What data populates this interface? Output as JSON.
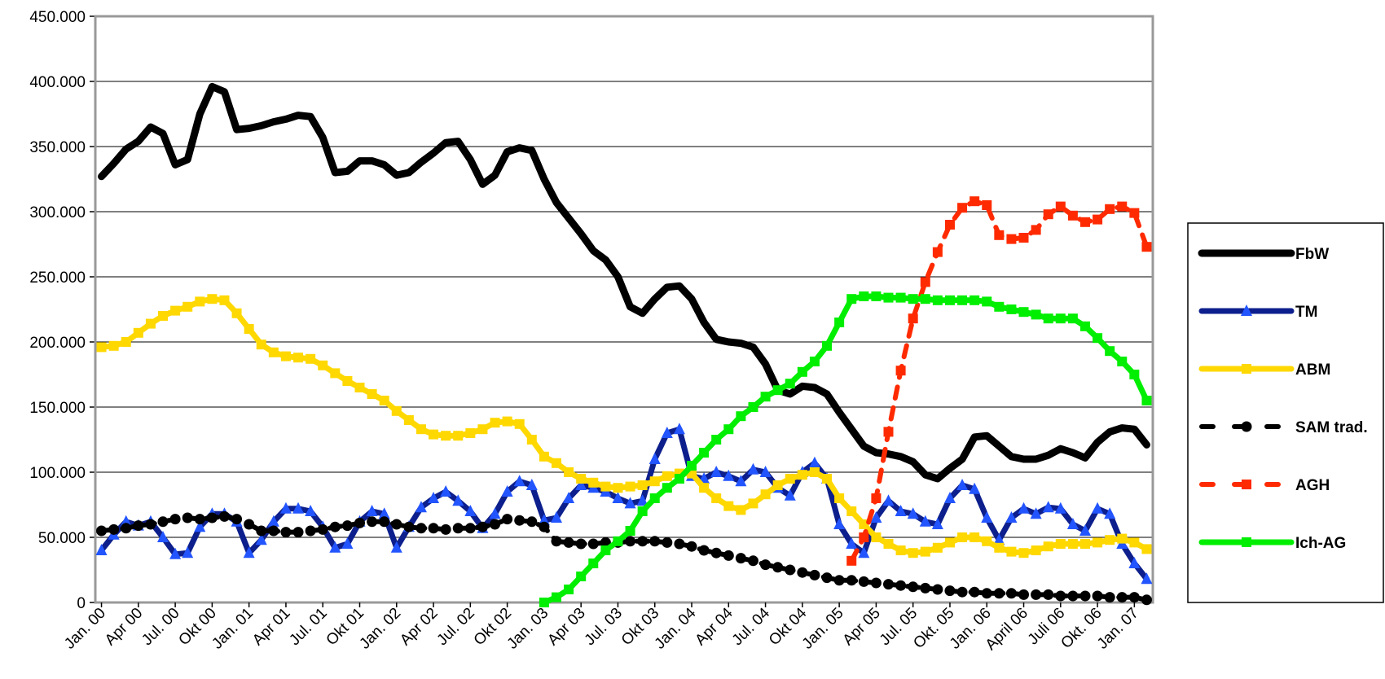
{
  "chart_data": {
    "type": "line",
    "categories": [
      "Jan. 00",
      null,
      null,
      "Apr 00",
      null,
      null,
      "Jul. 00",
      null,
      null,
      "Okt 00",
      null,
      null,
      "Jan. 01",
      null,
      null,
      "Apr 01",
      null,
      null,
      "Jul. 01",
      null,
      null,
      "Okt 01",
      null,
      null,
      "Jan. 02",
      null,
      null,
      "Apr 02",
      null,
      null,
      "Jul. 02",
      null,
      null,
      "Okt 02",
      null,
      null,
      "Jan. 03",
      null,
      null,
      "Apr 03",
      null,
      null,
      "Jul. 03",
      null,
      null,
      "Okt 03",
      null,
      null,
      "Jan. 04",
      null,
      null,
      "Apr 04",
      null,
      null,
      "Jul. 04",
      null,
      null,
      "Okt 04",
      null,
      null,
      "Jan. 05",
      null,
      null,
      "Apr 05",
      null,
      null,
      "Jul. 05",
      null,
      null,
      "Okt. 05",
      null,
      null,
      "Jan. 06",
      null,
      null,
      "April 06",
      null,
      null,
      "Juli 06",
      null,
      null,
      "Okt. 06",
      null,
      null,
      "Jan. 07",
      null
    ],
    "ylim": [
      0,
      450000
    ],
    "yticks": [
      0,
      {
        "value": 50000,
        "label": "50.000"
      },
      {
        "value": 100000,
        "label": "100.000"
      },
      {
        "value": 150000,
        "label": "150.000"
      },
      {
        "value": 200000,
        "label": "200.000"
      },
      {
        "value": 250000,
        "label": "250.000"
      },
      {
        "value": 300000,
        "label": "300.000"
      },
      {
        "value": 350000,
        "label": "350.000"
      },
      {
        "value": 400000,
        "label": "400.000"
      },
      {
        "value": 450000,
        "label": "450.000"
      }
    ],
    "grid": true,
    "legend": "right",
    "series": [
      {
        "name": "FbW",
        "color": "#000000",
        "marker": "none",
        "dashed": false,
        "width": 9,
        "values": [
          327000,
          337000,
          348000,
          354000,
          365000,
          360000,
          336000,
          340000,
          375000,
          396000,
          392000,
          363000,
          364000,
          366000,
          369000,
          371000,
          374000,
          373000,
          357000,
          330000,
          331000,
          339000,
          339000,
          336000,
          328000,
          330000,
          338000,
          345000,
          353000,
          354000,
          340000,
          321000,
          328000,
          346000,
          349000,
          347000,
          325000,
          307000,
          295000,
          283000,
          270000,
          263000,
          250000,
          227000,
          222000,
          233000,
          242000,
          243000,
          233000,
          215000,
          202000,
          200000,
          199000,
          196000,
          183000,
          163000,
          160000,
          166000,
          165000,
          160000,
          146000,
          133000,
          120000,
          115000,
          114000,
          112000,
          108000,
          98000,
          95000,
          103000,
          110000,
          127000,
          128000,
          120000,
          112000,
          110000,
          110000,
          113000,
          118000,
          115000,
          111000,
          123000,
          131000,
          134000,
          133000,
          121000
        ]
      },
      {
        "name": "TM",
        "color": "#0d1f8c",
        "marker": "triangle",
        "marker_color": "#2255ff",
        "dashed": false,
        "width": 7,
        "values": [
          40000,
          52000,
          62000,
          59000,
          62000,
          50000,
          37000,
          38000,
          58000,
          68000,
          68000,
          62000,
          38000,
          48000,
          62000,
          72000,
          72000,
          70000,
          58000,
          42000,
          45000,
          62000,
          70000,
          68000,
          42000,
          58000,
          73000,
          80000,
          85000,
          78000,
          70000,
          57000,
          68000,
          85000,
          93000,
          90000,
          63000,
          65000,
          80000,
          90000,
          88000,
          85000,
          80000,
          76000,
          78000,
          110000,
          130000,
          133000,
          97000,
          95000,
          100000,
          97000,
          93000,
          102000,
          100000,
          88000,
          82000,
          100000,
          107000,
          95000,
          60000,
          45000,
          38000,
          65000,
          78000,
          70000,
          68000,
          62000,
          60000,
          80000,
          90000,
          87000,
          65000,
          48000,
          65000,
          72000,
          68000,
          73000,
          72000,
          60000,
          55000,
          72000,
          68000,
          45000,
          30000,
          18000
        ]
      },
      {
        "name": "ABM",
        "color": "#ffd800",
        "marker": "square",
        "marker_color": "#ffd800",
        "dashed": false,
        "width": 7,
        "values": [
          196000,
          197000,
          200000,
          207000,
          214000,
          220000,
          224000,
          227000,
          231000,
          233000,
          232000,
          222000,
          210000,
          198000,
          192000,
          189000,
          188000,
          187000,
          182000,
          176000,
          170000,
          165000,
          160000,
          155000,
          147000,
          140000,
          133000,
          129000,
          128000,
          128000,
          130000,
          133000,
          138000,
          139000,
          137000,
          125000,
          112000,
          107000,
          100000,
          95000,
          92000,
          89000,
          88000,
          89000,
          90000,
          93000,
          97000,
          99000,
          99000,
          88000,
          80000,
          74000,
          71000,
          76000,
          83000,
          90000,
          95000,
          98000,
          100000,
          95000,
          80000,
          70000,
          60000,
          50000,
          45000,
          40000,
          38000,
          39000,
          42000,
          46000,
          50000,
          50000,
          47000,
          42000,
          39000,
          38000,
          40000,
          43000,
          45000,
          45000,
          45000,
          46000,
          48000,
          49000,
          46000,
          41000
        ]
      },
      {
        "name": "SAM trad.",
        "color": "#000000",
        "marker": "circle",
        "marker_color": "#000000",
        "dashed": true,
        "width": 6,
        "values": [
          55000,
          56000,
          57000,
          59000,
          60000,
          62000,
          64000,
          65000,
          64000,
          65000,
          66000,
          64000,
          60000,
          55000,
          55000,
          54000,
          54000,
          55000,
          56000,
          58000,
          59000,
          61000,
          62000,
          62000,
          60000,
          58000,
          57000,
          57000,
          56000,
          57000,
          57000,
          58000,
          60000,
          64000,
          63000,
          62000,
          58000,
          47000,
          46000,
          45000,
          45000,
          46000,
          46000,
          47000,
          47000,
          47000,
          46000,
          45000,
          43000,
          40000,
          38000,
          36000,
          34000,
          32000,
          29000,
          27000,
          25000,
          23000,
          21000,
          19000,
          17000,
          17000,
          16000,
          15000,
          14000,
          13000,
          12000,
          11000,
          10000,
          9000,
          8000,
          8000,
          7000,
          7000,
          7000,
          6000,
          6000,
          6000,
          5000,
          5000,
          5000,
          5000,
          4000,
          4000,
          4000,
          2000
        ]
      },
      {
        "name": "AGH",
        "color": "#ff2a00",
        "marker": "square",
        "marker_color": "#ff2a00",
        "dashed": true,
        "width": 6,
        "values": [
          null,
          null,
          null,
          null,
          null,
          null,
          null,
          null,
          null,
          null,
          null,
          null,
          null,
          null,
          null,
          null,
          null,
          null,
          null,
          null,
          null,
          null,
          null,
          null,
          null,
          null,
          null,
          null,
          null,
          null,
          null,
          null,
          null,
          null,
          null,
          null,
          null,
          null,
          null,
          null,
          null,
          null,
          null,
          null,
          null,
          null,
          null,
          null,
          null,
          null,
          null,
          null,
          null,
          null,
          null,
          null,
          null,
          null,
          null,
          null,
          null,
          32000,
          50000,
          80000,
          131000,
          178000,
          218000,
          246000,
          269000,
          290000,
          303000,
          308000,
          305000,
          282000,
          279000,
          280000,
          286000,
          298000,
          304000,
          297000,
          292000,
          294000,
          302000,
          304000,
          299000,
          273000
        ]
      },
      {
        "name": "Ich-AG",
        "color": "#00ee00",
        "marker": "square",
        "marker_color": "#00ee00",
        "dashed": false,
        "width": 7,
        "values": [
          null,
          null,
          null,
          null,
          null,
          null,
          null,
          null,
          null,
          null,
          null,
          null,
          null,
          null,
          null,
          null,
          null,
          null,
          null,
          null,
          null,
          null,
          null,
          null,
          null,
          null,
          null,
          null,
          null,
          null,
          null,
          null,
          null,
          null,
          null,
          null,
          0,
          4000,
          10000,
          20000,
          30000,
          40000,
          47000,
          55000,
          70000,
          80000,
          88000,
          95000,
          105000,
          115000,
          125000,
          133000,
          143000,
          150000,
          158000,
          163000,
          168000,
          177000,
          185000,
          197000,
          215000,
          233000,
          235000,
          235000,
          234000,
          234000,
          233000,
          233000,
          232000,
          232000,
          232000,
          232000,
          231000,
          227000,
          225000,
          223000,
          221000,
          218000,
          218000,
          218000,
          212000,
          203000,
          193000,
          185000,
          175000,
          155000
        ]
      }
    ]
  }
}
